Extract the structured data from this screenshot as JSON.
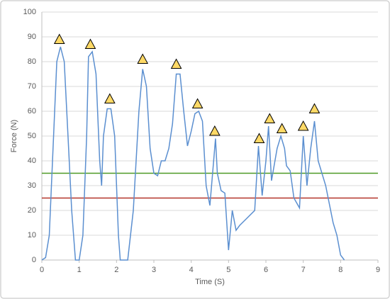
{
  "chart_data": {
    "type": "line",
    "xlabel": "Time (S)",
    "ylabel": "Force (N)",
    "x": [
      0,
      0.1,
      0.2,
      0.3,
      0.4,
      0.5,
      0.6,
      0.7,
      0.8,
      0.9,
      1.0,
      1.1,
      1.2,
      1.25,
      1.35,
      1.45,
      1.55,
      1.6,
      1.65,
      1.75,
      1.85,
      1.95,
      2.05,
      2.1,
      2.3,
      2.45,
      2.6,
      2.7,
      2.8,
      2.9,
      3.0,
      3.1,
      3.2,
      3.3,
      3.4,
      3.5,
      3.6,
      3.7,
      3.8,
      3.9,
      4.0,
      4.1,
      4.2,
      4.3,
      4.4,
      4.5,
      4.6,
      4.65,
      4.7,
      4.8,
      4.9,
      5.0,
      5.1,
      5.2,
      5.3,
      5.5,
      5.7,
      5.8,
      5.9,
      6.0,
      6.07,
      6.15,
      6.3,
      6.4,
      6.5,
      6.55,
      6.65,
      6.75,
      6.9,
      7.0,
      7.1,
      7.2,
      7.3,
      7.4,
      7.6,
      7.8,
      7.9,
      8.0,
      8.1
    ],
    "values": [
      0,
      1,
      10,
      45,
      80,
      86,
      80,
      50,
      20,
      0,
      0,
      10,
      50,
      82,
      84,
      75,
      40,
      30,
      50,
      61,
      61,
      50,
      10,
      0,
      0,
      20,
      60,
      77,
      70,
      45,
      35,
      34,
      40,
      40,
      45,
      55,
      75,
      75,
      60,
      46,
      52,
      59,
      60,
      56,
      30,
      22,
      40,
      49,
      35,
      28,
      27,
      4,
      20,
      12,
      14,
      17,
      20,
      46,
      26,
      40,
      54,
      32,
      45,
      50,
      45,
      38,
      36,
      25,
      21,
      50,
      30,
      45,
      56,
      40,
      30,
      15,
      10,
      2,
      0
    ],
    "color": "#5b8fd0",
    "peaks": {
      "x": [
        0.47,
        1.3,
        1.82,
        2.7,
        3.6,
        4.17,
        4.63,
        5.82,
        6.1,
        6.43,
        7.0,
        7.3
      ],
      "values": [
        89,
        87,
        65,
        81,
        79,
        63,
        52,
        49,
        57,
        53,
        54,
        61
      ],
      "color": "#ffd966"
    },
    "hlines": [
      {
        "value": 35,
        "color": "#4e9a26"
      },
      {
        "value": 25,
        "color": "#b3342a"
      }
    ],
    "xlim": [
      0,
      9
    ],
    "xticks": [
      0,
      1,
      2,
      3,
      4,
      5,
      6,
      7,
      8,
      9
    ],
    "ylim": [
      0,
      100
    ],
    "yticks": [
      0,
      10,
      20,
      30,
      40,
      50,
      60,
      70,
      80,
      90,
      100
    ],
    "grid": true
  }
}
